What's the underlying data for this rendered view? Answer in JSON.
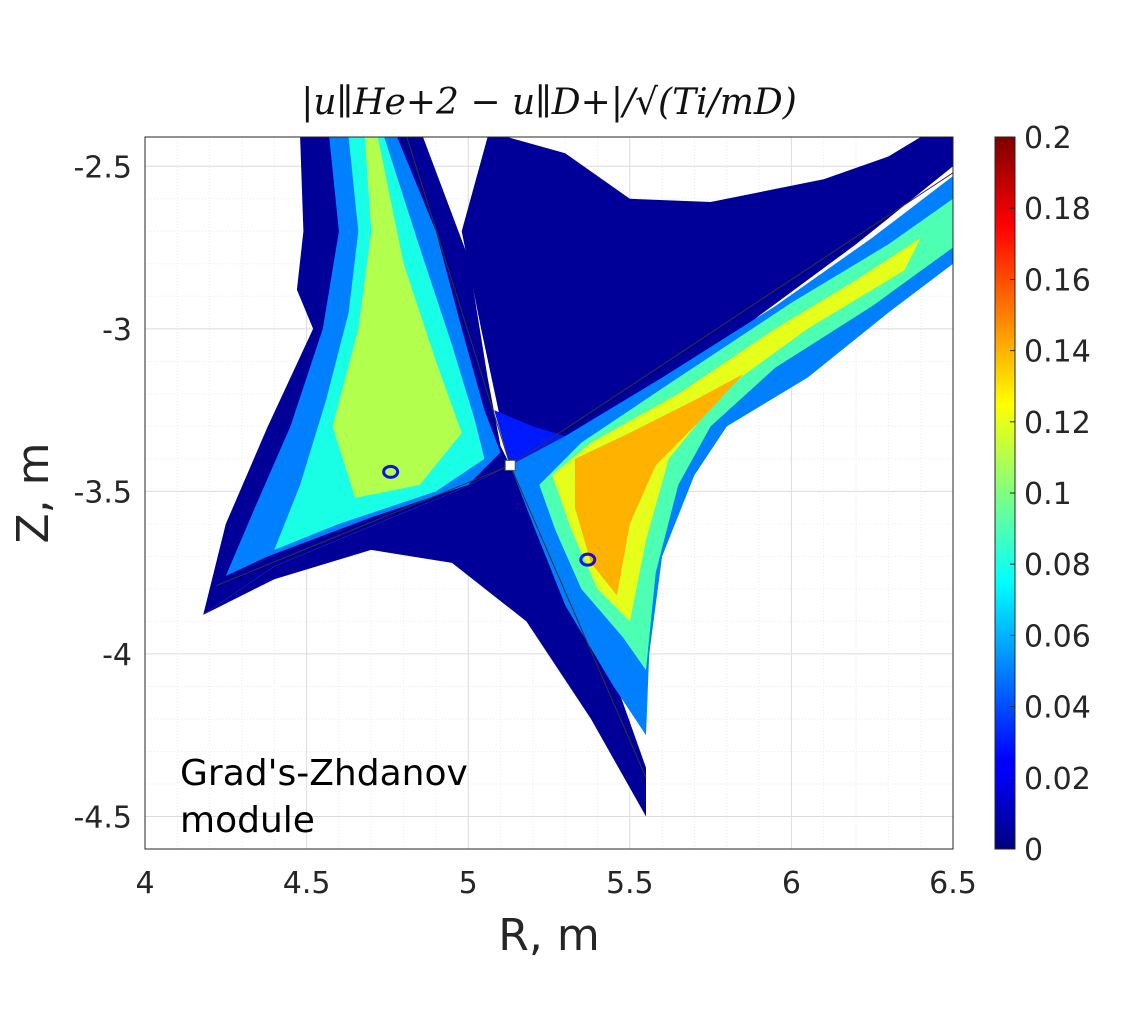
{
  "chart_data": {
    "type": "heatmap",
    "title": "|u∥He+2 − u∥D+|/√(Ti/mD)",
    "xlabel": "R, m",
    "ylabel": "Z, m",
    "xlim": [
      4,
      6.5
    ],
    "ylim": [
      -4.6,
      -2.41
    ],
    "x_ticks": [
      4,
      4.5,
      5,
      5.5,
      6,
      6.5
    ],
    "x_tick_labels": [
      "4",
      "4.5",
      "5",
      "5.5",
      "6",
      "6.5"
    ],
    "y_ticks": [
      -2.5,
      -3,
      -3.5,
      -4,
      -4.5
    ],
    "y_tick_labels": [
      "-2.5",
      "-3",
      "-3.5",
      "-4",
      "-4.5"
    ],
    "grid": true,
    "colorbar": {
      "min": 0,
      "max": 0.2,
      "colormap": "jet",
      "ticks": [
        0,
        0.02,
        0.04,
        0.06,
        0.08,
        0.1,
        0.12,
        0.14,
        0.16,
        0.18,
        0.2
      ],
      "tick_labels": [
        "0",
        "0.02",
        "0.04",
        "0.06",
        "0.08",
        "0.1",
        "0.12",
        "0.14",
        "0.16",
        "0.18",
        "0.2"
      ]
    },
    "annotation": [
      "Grad's-Zhdanov",
      "module"
    ],
    "markers": [
      {
        "R": 4.76,
        "Z": -3.44
      },
      {
        "R": 5.37,
        "Z": -3.71
      }
    ],
    "x_point": {
      "R": 5.13,
      "Z": -3.42
    },
    "regions": [
      {
        "value": 0.005,
        "polygon": [
          [
            4.48,
            -2.41
          ],
          [
            4.86,
            -2.41
          ],
          [
            5.0,
            -2.78
          ],
          [
            5.06,
            -3.15
          ],
          [
            5.1,
            -3.36
          ],
          [
            5.13,
            -3.42
          ],
          [
            4.96,
            -3.5
          ],
          [
            4.4,
            -3.73
          ],
          [
            4.18,
            -3.88
          ],
          [
            4.25,
            -3.6
          ],
          [
            4.38,
            -3.3
          ],
          [
            4.52,
            -3.0
          ],
          [
            4.47,
            -2.88
          ],
          [
            4.49,
            -2.7
          ]
        ]
      },
      {
        "value": 0.005,
        "polygon": [
          [
            5.06,
            -2.41
          ],
          [
            5.12,
            -2.41
          ],
          [
            5.3,
            -2.46
          ],
          [
            5.5,
            -2.6
          ],
          [
            5.75,
            -2.61
          ],
          [
            6.1,
            -2.54
          ],
          [
            6.3,
            -2.47
          ],
          [
            6.4,
            -2.41
          ],
          [
            6.5,
            -2.41
          ],
          [
            6.5,
            -2.5
          ],
          [
            6.2,
            -2.74
          ],
          [
            5.9,
            -2.96
          ],
          [
            5.6,
            -3.2
          ],
          [
            5.3,
            -3.33
          ],
          [
            5.13,
            -3.42
          ],
          [
            5.04,
            -3.0
          ],
          [
            4.98,
            -2.7
          ]
        ]
      },
      {
        "value": 0.005,
        "polygon": [
          [
            4.18,
            -3.88
          ],
          [
            4.4,
            -3.73
          ],
          [
            4.96,
            -3.5
          ],
          [
            5.13,
            -3.42
          ],
          [
            5.4,
            -3.93
          ],
          [
            5.55,
            -4.35
          ],
          [
            5.55,
            -4.5
          ],
          [
            5.38,
            -4.2
          ],
          [
            5.18,
            -3.9
          ],
          [
            4.95,
            -3.72
          ],
          [
            4.7,
            -3.68
          ],
          [
            4.4,
            -3.77
          ]
        ]
      },
      {
        "value": 0.05,
        "polygon": [
          [
            4.57,
            -2.41
          ],
          [
            4.78,
            -2.41
          ],
          [
            4.9,
            -2.7
          ],
          [
            4.98,
            -3.0
          ],
          [
            5.05,
            -3.25
          ],
          [
            5.1,
            -3.38
          ],
          [
            5.0,
            -3.48
          ],
          [
            4.7,
            -3.58
          ],
          [
            4.38,
            -3.7
          ],
          [
            4.25,
            -3.76
          ],
          [
            4.34,
            -3.55
          ],
          [
            4.45,
            -3.3
          ],
          [
            4.55,
            -3.0
          ],
          [
            4.6,
            -2.7
          ]
        ]
      },
      {
        "value": 0.08,
        "polygon": [
          [
            4.63,
            -2.41
          ],
          [
            4.74,
            -2.41
          ],
          [
            4.85,
            -2.75
          ],
          [
            4.95,
            -3.05
          ],
          [
            5.02,
            -3.28
          ],
          [
            5.05,
            -3.4
          ],
          [
            4.9,
            -3.5
          ],
          [
            4.6,
            -3.6
          ],
          [
            4.4,
            -3.68
          ],
          [
            4.48,
            -3.48
          ],
          [
            4.56,
            -3.22
          ],
          [
            4.63,
            -2.95
          ],
          [
            4.66,
            -2.7
          ]
        ]
      },
      {
        "value": 0.11,
        "polygon": [
          [
            4.68,
            -2.41
          ],
          [
            4.72,
            -2.41
          ],
          [
            4.8,
            -2.8
          ],
          [
            4.9,
            -3.1
          ],
          [
            4.98,
            -3.32
          ],
          [
            4.85,
            -3.48
          ],
          [
            4.65,
            -3.52
          ],
          [
            4.58,
            -3.3
          ],
          [
            4.66,
            -3.0
          ],
          [
            4.7,
            -2.7
          ]
        ]
      },
      {
        "value": 0.05,
        "polygon": [
          [
            5.13,
            -3.42
          ],
          [
            5.3,
            -3.33
          ],
          [
            5.6,
            -3.15
          ],
          [
            5.95,
            -2.93
          ],
          [
            6.25,
            -2.72
          ],
          [
            6.5,
            -2.53
          ],
          [
            6.5,
            -2.8
          ],
          [
            6.3,
            -2.95
          ],
          [
            6.05,
            -3.15
          ],
          [
            5.8,
            -3.3
          ],
          [
            5.7,
            -3.45
          ],
          [
            5.6,
            -3.7
          ],
          [
            5.56,
            -4.0
          ],
          [
            5.55,
            -4.25
          ],
          [
            5.45,
            -4.1
          ],
          [
            5.3,
            -3.85
          ],
          [
            5.2,
            -3.6
          ]
        ]
      },
      {
        "value": 0.09,
        "polygon": [
          [
            5.22,
            -3.48
          ],
          [
            5.35,
            -3.35
          ],
          [
            5.65,
            -3.15
          ],
          [
            6.0,
            -2.92
          ],
          [
            6.3,
            -2.74
          ],
          [
            6.5,
            -2.6
          ],
          [
            6.5,
            -2.75
          ],
          [
            6.25,
            -2.93
          ],
          [
            5.95,
            -3.12
          ],
          [
            5.75,
            -3.3
          ],
          [
            5.65,
            -3.48
          ],
          [
            5.58,
            -3.75
          ],
          [
            5.55,
            -4.05
          ],
          [
            5.48,
            -3.95
          ],
          [
            5.35,
            -3.8
          ],
          [
            5.27,
            -3.62
          ]
        ]
      },
      {
        "value": 0.12,
        "polygon": [
          [
            5.26,
            -3.45
          ],
          [
            5.38,
            -3.35
          ],
          [
            5.65,
            -3.2
          ],
          [
            5.95,
            -3.0
          ],
          [
            6.2,
            -2.85
          ],
          [
            6.4,
            -2.72
          ],
          [
            6.35,
            -2.82
          ],
          [
            6.05,
            -3.0
          ],
          [
            5.8,
            -3.18
          ],
          [
            5.62,
            -3.4
          ],
          [
            5.55,
            -3.65
          ],
          [
            5.5,
            -3.9
          ],
          [
            5.4,
            -3.8
          ],
          [
            5.32,
            -3.62
          ]
        ]
      },
      {
        "value": 0.14,
        "polygon": [
          [
            5.33,
            -3.4
          ],
          [
            5.5,
            -3.32
          ],
          [
            5.7,
            -3.22
          ],
          [
            5.85,
            -3.14
          ],
          [
            5.72,
            -3.28
          ],
          [
            5.58,
            -3.42
          ],
          [
            5.5,
            -3.6
          ],
          [
            5.46,
            -3.82
          ],
          [
            5.38,
            -3.72
          ],
          [
            5.33,
            -3.55
          ]
        ]
      },
      {
        "value": 0.03,
        "polygon": [
          [
            5.08,
            -3.25
          ],
          [
            5.13,
            -3.42
          ],
          [
            5.3,
            -3.33
          ],
          [
            5.2,
            -3.3
          ]
        ]
      }
    ]
  }
}
